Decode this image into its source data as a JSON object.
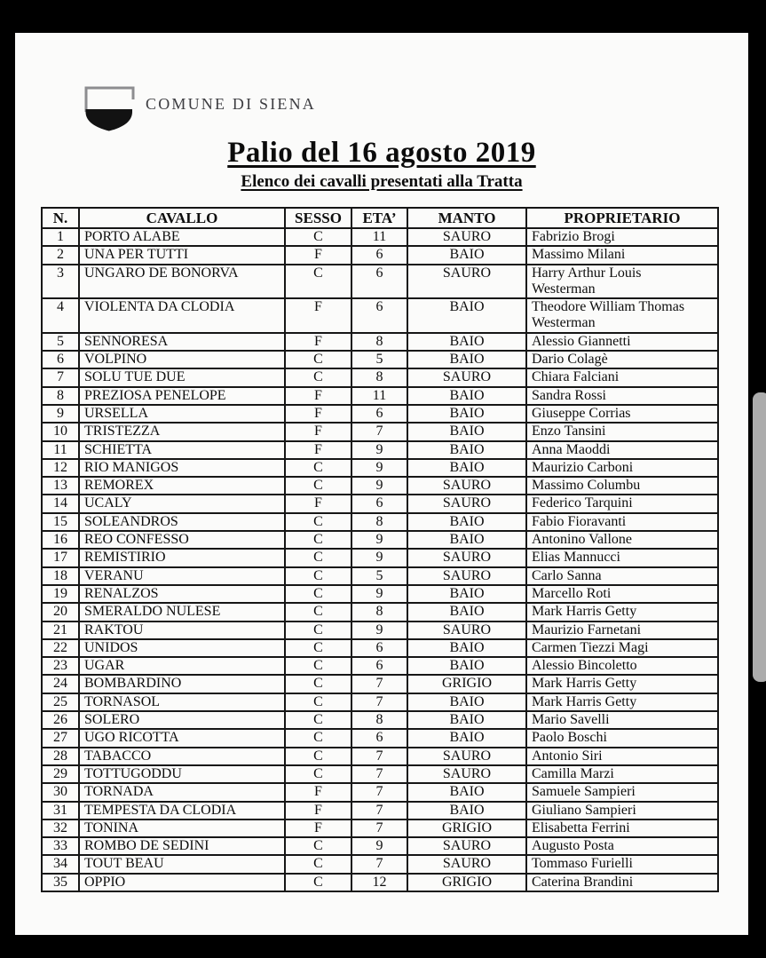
{
  "logo": {
    "text": "COMUNE DI SIENA"
  },
  "title": "Palio del 16 agosto 2019",
  "subtitle": "Elenco dei cavalli presentati alla Tratta",
  "table": {
    "headers": [
      "N.",
      "CAVALLO",
      "SESSO",
      "ETA’",
      "MANTO",
      "PROPRIETARIO"
    ],
    "rows": [
      [
        "1",
        "PORTO ALABE",
        "C",
        "11",
        "SAURO",
        "Fabrizio Brogi"
      ],
      [
        "2",
        "UNA PER TUTTI",
        "F",
        "6",
        "BAIO",
        "Massimo Milani"
      ],
      [
        "3",
        "UNGARO DE BONORVA",
        "C",
        "6",
        "SAURO",
        "Harry Arthur Louis\nWesterman"
      ],
      [
        "4",
        "VIOLENTA DA CLODIA",
        "F",
        "6",
        "BAIO",
        "Theodore William Thomas\nWesterman"
      ],
      [
        "5",
        "SENNORESA",
        "F",
        "8",
        "BAIO",
        "Alessio Giannetti"
      ],
      [
        "6",
        "VOLPINO",
        "C",
        "5",
        "BAIO",
        "Dario Colagè"
      ],
      [
        "7",
        "SOLU TUE DUE",
        "C",
        "8",
        "SAURO",
        "Chiara Falciani"
      ],
      [
        "8",
        "PREZIOSA PENELOPE",
        "F",
        "11",
        "BAIO",
        "Sandra Rossi"
      ],
      [
        "9",
        "URSELLA",
        "F",
        "6",
        "BAIO",
        "Giuseppe Corrias"
      ],
      [
        "10",
        "TRISTEZZA",
        "F",
        "7",
        "BAIO",
        "Enzo Tansini"
      ],
      [
        "11",
        "SCHIETTA",
        "F",
        "9",
        "BAIO",
        "Anna Maoddi"
      ],
      [
        "12",
        "RIO MANIGOS",
        "C",
        "9",
        "BAIO",
        "Maurizio Carboni"
      ],
      [
        "13",
        "REMOREX",
        "C",
        "9",
        "SAURO",
        "Massimo Columbu"
      ],
      [
        "14",
        "UCALY",
        "F",
        "6",
        "SAURO",
        "Federico Tarquini"
      ],
      [
        "15",
        "SOLEANDROS",
        "C",
        "8",
        "BAIO",
        "Fabio Fioravanti"
      ],
      [
        "16",
        "REO CONFESSO",
        "C",
        "9",
        "BAIO",
        "Antonino Vallone"
      ],
      [
        "17",
        "REMISTIRIO",
        "C",
        "9",
        "SAURO",
        "Elias Mannucci"
      ],
      [
        "18",
        "VERANU",
        "C",
        "5",
        "SAURO",
        "Carlo Sanna"
      ],
      [
        "19",
        "RENALZOS",
        "C",
        "9",
        "BAIO",
        "Marcello Roti"
      ],
      [
        "20",
        "SMERALDO NULESE",
        "C",
        "8",
        "BAIO",
        "Mark Harris Getty"
      ],
      [
        "21",
        "RAKTOU",
        "C",
        "9",
        "SAURO",
        "Maurizio Farnetani"
      ],
      [
        "22",
        "UNIDOS",
        "C",
        "6",
        "BAIO",
        "Carmen Tiezzi Magi"
      ],
      [
        "23",
        "UGAR",
        "C",
        "6",
        "BAIO",
        "Alessio Bincoletto"
      ],
      [
        "24",
        "BOMBARDINO",
        "C",
        "7",
        "GRIGIO",
        "Mark Harris Getty"
      ],
      [
        "25",
        "TORNASOL",
        "C",
        "7",
        "BAIO",
        "Mark Harris Getty"
      ],
      [
        "26",
        "SOLERO",
        "C",
        "8",
        "BAIO",
        "Mario Savelli"
      ],
      [
        "27",
        "UGO RICOTTA",
        "C",
        "6",
        "BAIO",
        "Paolo Boschi"
      ],
      [
        "28",
        "TABACCO",
        "C",
        "7",
        "SAURO",
        "Antonio Siri"
      ],
      [
        "29",
        "TOTTUGODDU",
        "C",
        "7",
        "SAURO",
        "Camilla Marzi"
      ],
      [
        "30",
        "TORNADA",
        "F",
        "7",
        "BAIO",
        "Samuele Sampieri"
      ],
      [
        "31",
        "TEMPESTA DA CLODIA",
        "F",
        "7",
        "BAIO",
        "Giuliano Sampieri"
      ],
      [
        "32",
        "TONINA",
        "F",
        "7",
        "GRIGIO",
        "Elisabetta Ferrini"
      ],
      [
        "33",
        "ROMBO DE SEDINI",
        "C",
        "9",
        "SAURO",
        "Augusto Posta"
      ],
      [
        "34",
        "TOUT BEAU",
        "C",
        "7",
        "SAURO",
        "Tommaso Furielli"
      ],
      [
        "35",
        "OPPIO",
        "C",
        "12",
        "GRIGIO",
        "Caterina Brandini"
      ]
    ]
  },
  "colors": {
    "viewer_bg": "#000000",
    "page_bg": "#fbfbfa",
    "text": "#0e0e0e",
    "logo_gray": "#3d3d41",
    "scrollbar_thumb": "#acacac"
  }
}
